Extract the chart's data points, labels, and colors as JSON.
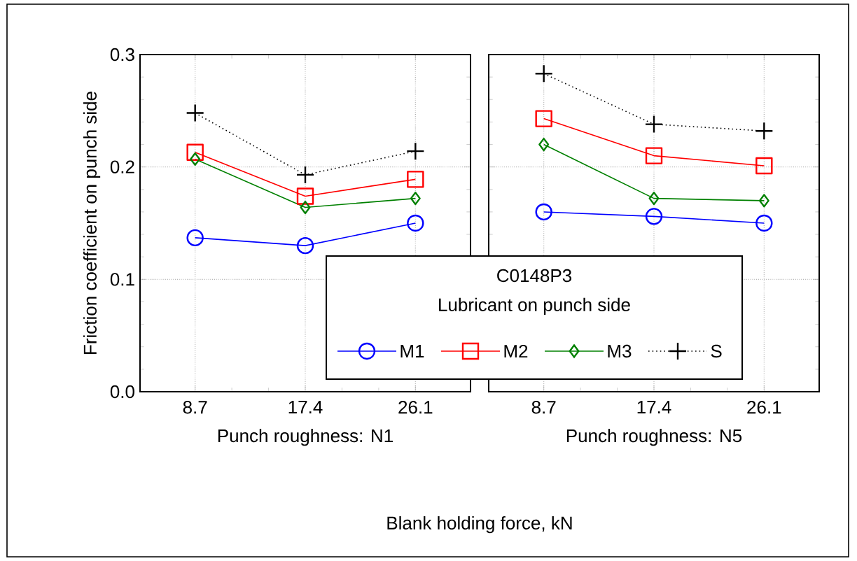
{
  "chart_data": [
    {
      "type": "line",
      "xlabel": "Punch roughness: N1",
      "ylabel": "Friction coefficient on punch side",
      "categories": [
        "8.7",
        "17.4",
        "26.1"
      ],
      "ylim": [
        0,
        0.3
      ],
      "yticks": [
        {
          "value": 0,
          "label": "0.0"
        },
        {
          "value": 0.1,
          "label": "0.1"
        },
        {
          "value": 0.2,
          "label": "0.2"
        },
        {
          "value": 0.3,
          "label": "0.3"
        }
      ],
      "grid": true,
      "legend": "bottom right",
      "legend_title": "C0148P3",
      "annotations": [
        "Blank holding force, kN",
        "Lubricant on punch side"
      ],
      "series": [
        {
          "name": "M1",
          "color": "#0000ff",
          "marker": "circle",
          "line_style": "solid",
          "values": [
            0.137,
            0.13,
            0.15
          ]
        },
        {
          "name": "M2",
          "color": "#ff0000",
          "marker": "square",
          "line_style": "solid",
          "values": [
            0.213,
            0.174,
            0.189
          ]
        },
        {
          "name": "M3",
          "color": "#008000",
          "marker": "diamond",
          "line_style": "solid",
          "values": [
            0.207,
            0.164,
            0.172
          ]
        },
        {
          "name": "S",
          "color": "#000000",
          "marker": "cross",
          "line_style": "dotted",
          "values": [
            0.248,
            0.193,
            0.214
          ]
        }
      ]
    },
    {
      "type": "line",
      "xlabel": "Punch roughness: N5",
      "categories": [
        "8.7",
        "17.4",
        "26.1"
      ],
      "ylim": [
        0,
        0.3
      ],
      "yticks": [
        0,
        0.1,
        0.2,
        0.3
      ],
      "grid": true,
      "tick_labels": "x",
      "series": [
        {
          "color": "#0000ff",
          "marker": "circle",
          "line_style": "solid",
          "values": [
            0.16,
            0.156,
            0.15
          ]
        },
        {
          "color": "#ff0000",
          "marker": "square",
          "line_style": "solid",
          "values": [
            0.243,
            0.21,
            0.201
          ]
        },
        {
          "color": "#008000",
          "marker": "diamond",
          "line_style": "solid",
          "values": [
            0.22,
            0.172,
            0.17
          ]
        },
        {
          "color": "#000000",
          "marker": "cross",
          "line_style": "dotted",
          "values": [
            0.283,
            0.238,
            0.232
          ]
        }
      ]
    }
  ]
}
